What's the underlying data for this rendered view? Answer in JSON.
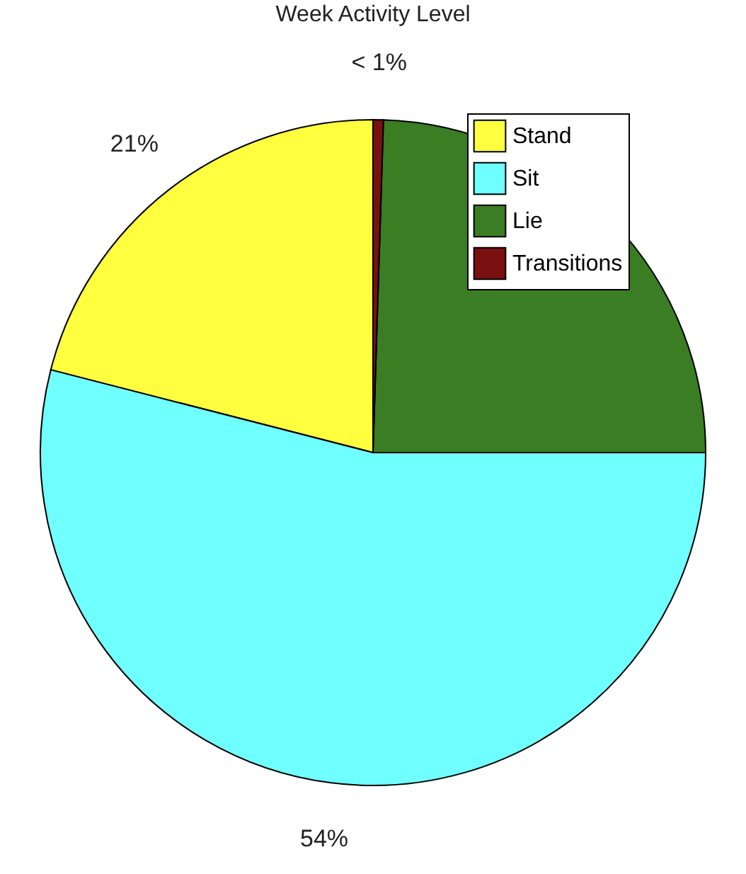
{
  "chart_data": {
    "type": "pie",
    "title": "Week Activity Level",
    "categories": [
      "Stand",
      "Sit",
      "Lie",
      "Transitions"
    ],
    "values": [
      21,
      54,
      24.5,
      0.5
    ],
    "colors": [
      "#ffff40",
      "#70ffff",
      "#3a7d22",
      "#7a1010"
    ],
    "value_labels": [
      "21%",
      "54%",
      null,
      "< 1%"
    ],
    "legend": "top right"
  }
}
